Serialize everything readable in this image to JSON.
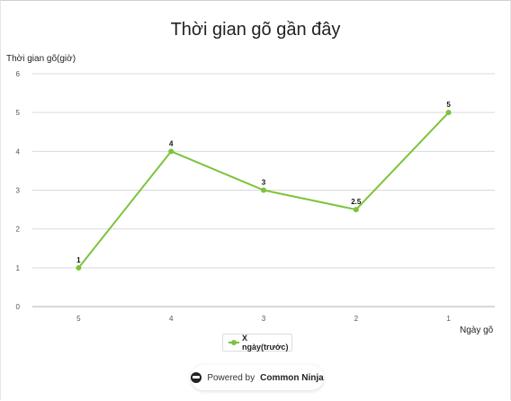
{
  "chart_data": {
    "type": "line",
    "title": "Thời gian gõ gần đây",
    "ylabel": "Thời gian gõ(giờ)",
    "xlabel": "Ngày gõ",
    "categories": [
      "5",
      "4",
      "3",
      "2",
      "1"
    ],
    "series": [
      {
        "name": "X ngày(trước)",
        "values": [
          1,
          4,
          3,
          2.5,
          5
        ],
        "color": "#7dc33b"
      }
    ],
    "data_labels": [
      "1",
      "4",
      "3",
      "2.5",
      "5"
    ],
    "ylim": [
      0,
      6
    ],
    "yticks": [
      "0",
      "1",
      "2",
      "3",
      "4",
      "5",
      "6"
    ],
    "grid": true,
    "legend_position": "bottom"
  },
  "footer": {
    "powered_prefix": "Powered by",
    "powered_brand": "Common Ninja",
    "icon": "ninja-icon"
  }
}
